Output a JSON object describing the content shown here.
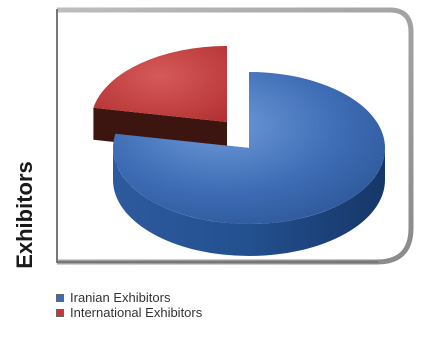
{
  "chart_data": {
    "type": "pie",
    "title": "",
    "ylabel": "Exhibitors",
    "legend_position": "bottom-left",
    "three_d": true,
    "exploded_slice": "International Exhibitors",
    "slices": [
      {
        "name": "Iranian Exhibitors",
        "value": 78,
        "color": "#3d6bb4",
        "side_color": "#21477f"
      },
      {
        "name": "International Exhibitors",
        "value": 22,
        "color": "#c4383a",
        "side_color": "#3d1510"
      }
    ]
  }
}
